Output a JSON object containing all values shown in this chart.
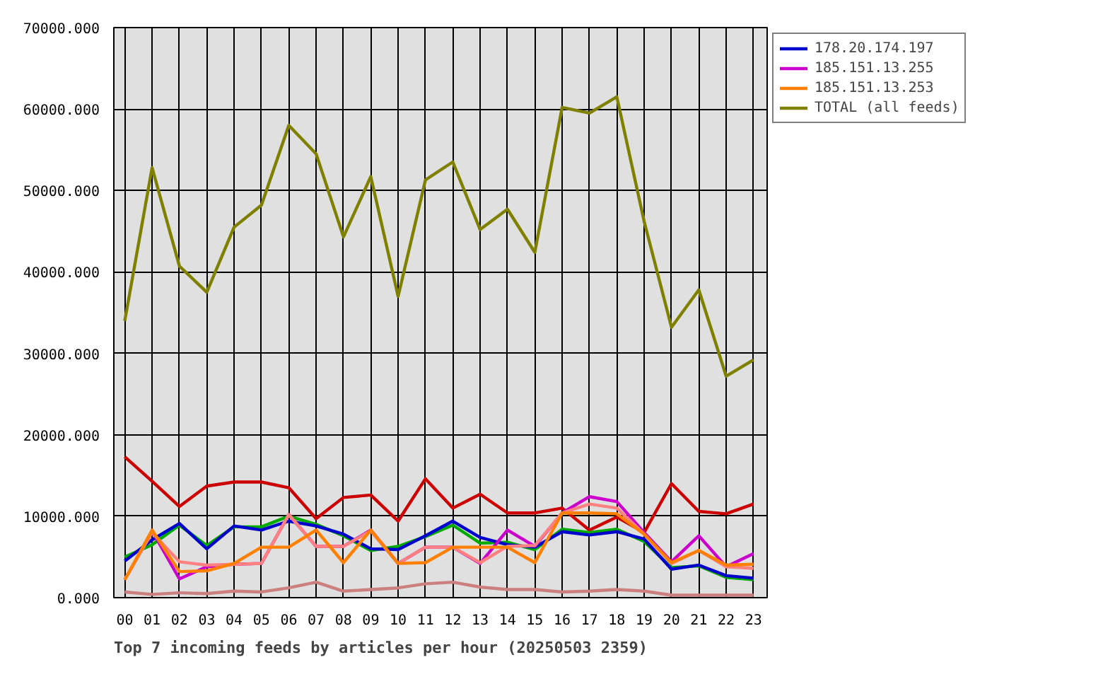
{
  "chart_data": {
    "type": "line",
    "title": "Top 7 incoming feeds by articles per hour (20250503 2359)",
    "categories": [
      "00",
      "01",
      "02",
      "03",
      "04",
      "05",
      "06",
      "07",
      "08",
      "09",
      "10",
      "11",
      "12",
      "13",
      "14",
      "15",
      "16",
      "17",
      "18",
      "19",
      "20",
      "21",
      "22",
      "23"
    ],
    "ylim": [
      0,
      70000
    ],
    "yticks": [
      {
        "value": 0,
        "label": "0.000"
      },
      {
        "value": 10000,
        "label": "10000.000"
      },
      {
        "value": 20000,
        "label": "20000.000"
      },
      {
        "value": 30000,
        "label": "30000.000"
      },
      {
        "value": 40000,
        "label": "40000.000"
      },
      {
        "value": 50000,
        "label": "50000.000"
      },
      {
        "value": 60000,
        "label": "60000.000"
      },
      {
        "value": 70000,
        "label": "70000.000"
      }
    ],
    "grid": true,
    "legend": "top right",
    "line_style": "solid",
    "series": [
      {
        "color": "#cc0000",
        "values": [
          17300,
          14300,
          11200,
          13700,
          14200,
          14200,
          13500,
          9700,
          12300,
          12600,
          9400,
          14600,
          11000,
          12700,
          10400,
          10400,
          11000,
          8300,
          9900,
          8000,
          14000,
          10600,
          10300,
          11500
        ]
      },
      {
        "color": "#00aa00",
        "values": [
          5000,
          6500,
          8900,
          6400,
          8700,
          8700,
          10000,
          9000,
          7600,
          5800,
          6300,
          7500,
          8900,
          6700,
          6800,
          5900,
          8400,
          8000,
          8400,
          6900,
          3700,
          3900,
          2500,
          2200
        ]
      },
      {
        "name": "178.20.174.197",
        "color": "#0000cc",
        "values": [
          4500,
          7100,
          9100,
          6000,
          8800,
          8300,
          9400,
          8800,
          7800,
          6000,
          5900,
          7600,
          9400,
          7400,
          6500,
          6200,
          8100,
          7700,
          8100,
          7200,
          3500,
          4000,
          2700,
          2400
        ]
      },
      {
        "name": "185.151.13.255",
        "color": "#cc00cc",
        "values": [
          null,
          8200,
          2300,
          3800,
          4100,
          4200,
          10200,
          6300,
          6300,
          8300,
          4200,
          6200,
          6200,
          4200,
          8300,
          6300,
          10400,
          12400,
          11800,
          8000,
          4400,
          7600,
          3800,
          5400
        ]
      },
      {
        "color": "#ff8080",
        "values": [
          2200,
          8000,
          4400,
          4000,
          4100,
          4200,
          10200,
          6300,
          6300,
          8200,
          4200,
          6200,
          6200,
          4300,
          6300,
          6400,
          10400,
          11500,
          11000,
          7800,
          4200,
          5800,
          3800,
          3600
        ]
      },
      {
        "name": "185.151.13.253",
        "color": "#ff8000",
        "values": [
          2200,
          8300,
          3200,
          3300,
          4200,
          6200,
          6200,
          8300,
          4300,
          8300,
          4200,
          4300,
          6200,
          6200,
          6200,
          4300,
          10400,
          10400,
          10300,
          7800,
          4300,
          5800,
          4000,
          4100
        ]
      },
      {
        "color": "#cc7f7f",
        "values": [
          700,
          400,
          600,
          500,
          800,
          700,
          1200,
          1900,
          800,
          1000,
          1200,
          1700,
          1900,
          1300,
          1000,
          1000,
          700,
          800,
          1000,
          800,
          300,
          300,
          300,
          300
        ]
      },
      {
        "name": "TOTAL (all feeds)",
        "color": "#808000",
        "values": [
          34000,
          52800,
          40700,
          37500,
          45500,
          48200,
          58000,
          54500,
          44300,
          51700,
          37000,
          51300,
          53500,
          45200,
          47700,
          42400,
          60200,
          59500,
          61500,
          46200,
          33200,
          37800,
          27200,
          29200
        ]
      }
    ]
  }
}
